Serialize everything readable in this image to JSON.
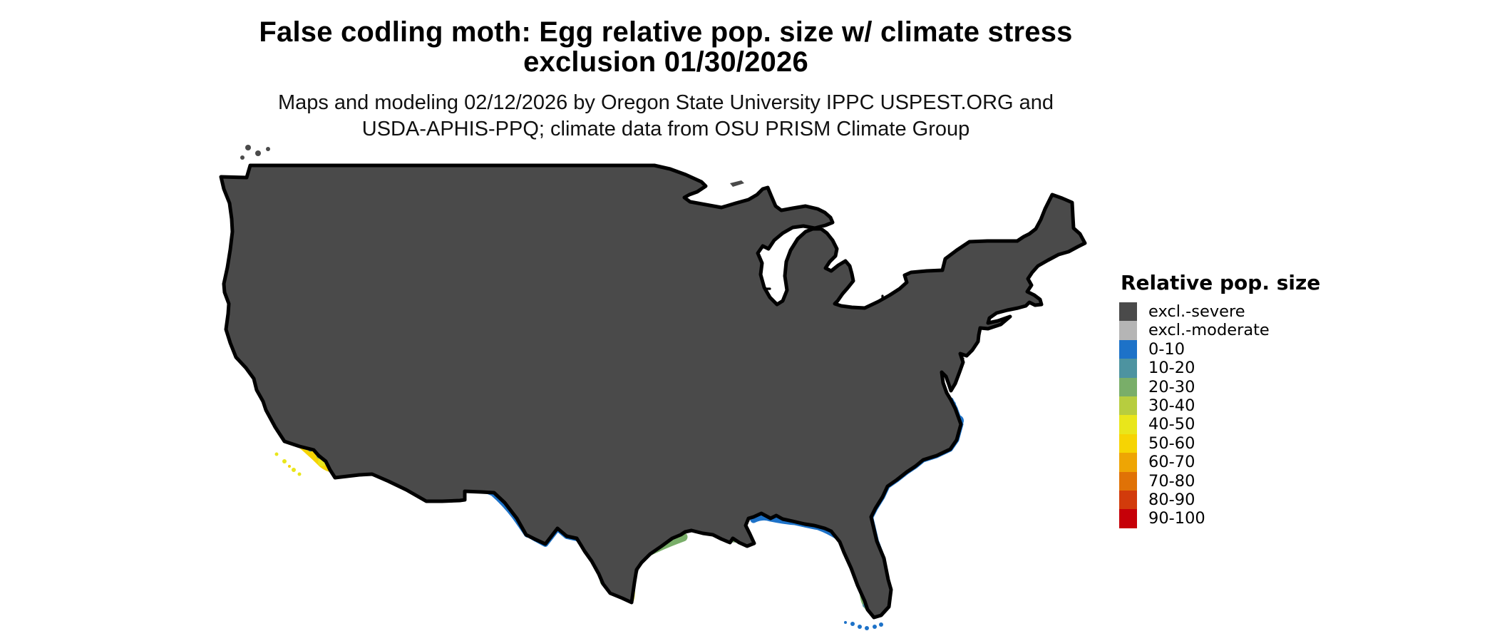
{
  "page": {
    "background": "#ffffff",
    "title": {
      "line1": "False codling moth: Egg relative pop. size w/ climate stress",
      "line2": "exclusion 01/30/2026"
    },
    "subtitle": {
      "line1": "Maps and modeling 02/12/2026 by Oregon State University IPPC USPEST.ORG and",
      "line2": "USDA-APHIS-PPQ; climate data from OSU PRISM Climate Group"
    }
  },
  "legend": {
    "title": "Relative pop. size",
    "items": [
      {
        "label": "excl.-severe",
        "color": "#4a4a4a"
      },
      {
        "label": "excl.-moderate",
        "color": "#b5b5b5"
      },
      {
        "label": "0-10",
        "color": "#1d72c8"
      },
      {
        "label": "10-20",
        "color": "#4d93a0"
      },
      {
        "label": "20-30",
        "color": "#79ae69"
      },
      {
        "label": "30-40",
        "color": "#b7cd3f"
      },
      {
        "label": "40-50",
        "color": "#e9e61b"
      },
      {
        "label": "50-60",
        "color": "#f6d403"
      },
      {
        "label": "60-70",
        "color": "#eea504"
      },
      {
        "label": "70-80",
        "color": "#e07206"
      },
      {
        "label": "80-90",
        "color": "#d23b0b"
      },
      {
        "label": "90-100",
        "color": "#c60008"
      }
    ]
  },
  "map": {
    "description": "Contiguous United States choropleth of relative population size with climate-stress exclusion",
    "border_color": "#000000",
    "water_color": "#ffffff",
    "colors": {
      "severe": "#4a4a4a",
      "moderate": "#b5b5b5",
      "c0_10": "#1d72c8",
      "c10_20": "#4d93a0",
      "c20_30": "#79ae69",
      "c30_40": "#b7cd3f",
      "c40_50": "#e9e61b",
      "c50_60": "#f6d403",
      "c60_70": "#eea504",
      "c70_80": "#e07206",
      "c80_90": "#d23b0b",
      "c90_100": "#c60008"
    }
  }
}
